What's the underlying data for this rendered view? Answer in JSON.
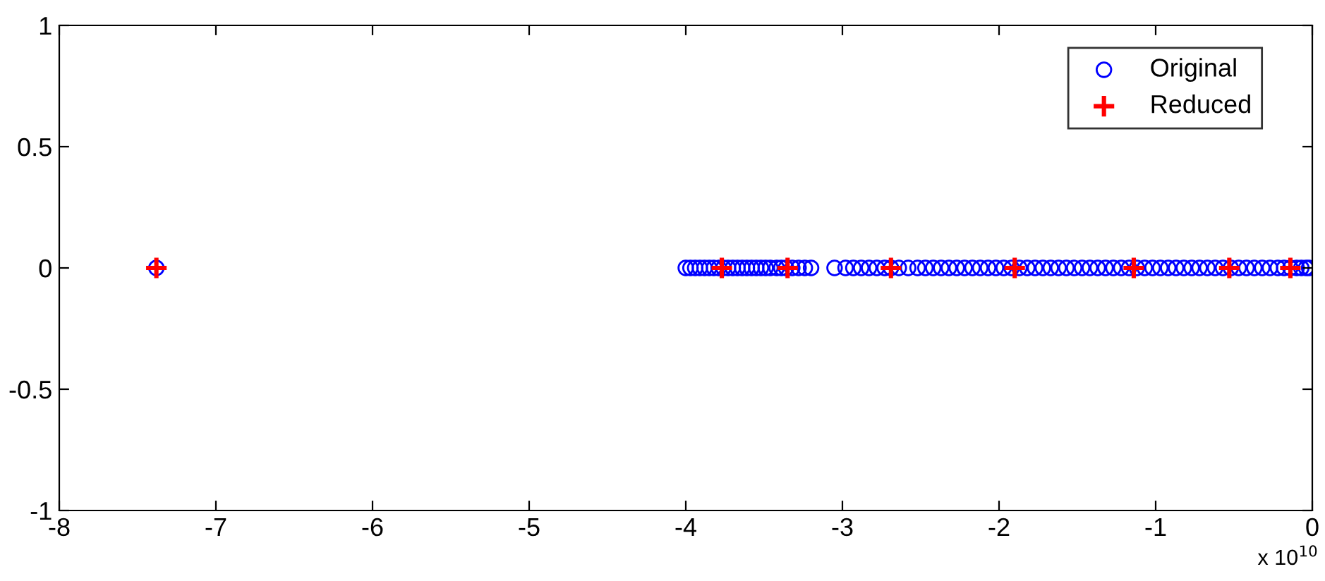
{
  "chart_data": {
    "type": "scatter",
    "xlim": [
      -8,
      0
    ],
    "ylim": [
      -1,
      1
    ],
    "xticks": [
      -8,
      -7,
      -6,
      -5,
      -4,
      -3,
      -2,
      -1,
      0
    ],
    "yticks": [
      -1,
      -0.5,
      0,
      0.5,
      1
    ],
    "grid": false,
    "legend": "top right",
    "annotations": [
      "x 10$^{10}$"
    ],
    "series": [
      {
        "name": "Original",
        "color": "#0000ff",
        "marker": "circle",
        "x": [
          -7.38,
          -4.0,
          -3.97,
          -3.94,
          -3.91,
          -3.88,
          -3.85,
          -3.82,
          -3.79,
          -3.76,
          -3.73,
          -3.7,
          -3.67,
          -3.64,
          -3.61,
          -3.58,
          -3.55,
          -3.52,
          -3.49,
          -3.46,
          -3.42,
          -3.39,
          -3.36,
          -3.32,
          -3.28,
          -3.24,
          -3.2,
          -3.05,
          -2.98,
          -2.93,
          -2.88,
          -2.83,
          -2.78,
          -2.73,
          -2.69,
          -2.64,
          -2.58,
          -2.52,
          -2.47,
          -2.42,
          -2.37,
          -2.32,
          -2.27,
          -2.22,
          -2.17,
          -2.12,
          -2.07,
          -2.02,
          -1.97,
          -1.92,
          -1.87,
          -1.82,
          -1.77,
          -1.72,
          -1.67,
          -1.62,
          -1.57,
          -1.52,
          -1.47,
          -1.42,
          -1.37,
          -1.32,
          -1.27,
          -1.22,
          -1.17,
          -1.12,
          -1.07,
          -1.02,
          -0.97,
          -0.92,
          -0.87,
          -0.82,
          -0.77,
          -0.72,
          -0.67,
          -0.62,
          -0.57,
          -0.52,
          -0.47,
          -0.42,
          -0.37,
          -0.32,
          -0.27,
          -0.22,
          -0.18,
          -0.14,
          -0.1,
          -0.07,
          -0.04,
          -0.02
        ],
        "values": [
          0,
          0,
          0,
          0,
          0,
          0,
          0,
          0,
          0,
          0,
          0,
          0,
          0,
          0,
          0,
          0,
          0,
          0,
          0,
          0,
          0,
          0,
          0,
          0,
          0,
          0,
          0,
          0,
          0,
          0,
          0,
          0,
          0,
          0,
          0,
          0,
          0,
          0,
          0,
          0,
          0,
          0,
          0,
          0,
          0,
          0,
          0,
          0,
          0,
          0,
          0,
          0,
          0,
          0,
          0,
          0,
          0,
          0,
          0,
          0,
          0,
          0,
          0,
          0,
          0,
          0,
          0,
          0,
          0,
          0,
          0,
          0,
          0,
          0,
          0,
          0,
          0,
          0,
          0,
          0,
          0,
          0,
          0,
          0,
          0,
          0,
          0,
          0,
          0,
          0
        ]
      },
      {
        "name": "Reduced",
        "color": "#ff0000",
        "marker": "cross",
        "x": [
          -7.38,
          -3.77,
          -3.35,
          -2.69,
          -1.9,
          -1.14,
          -0.53,
          -0.14
        ],
        "values": [
          0,
          0,
          0,
          0,
          0,
          0,
          0,
          0
        ]
      }
    ]
  }
}
